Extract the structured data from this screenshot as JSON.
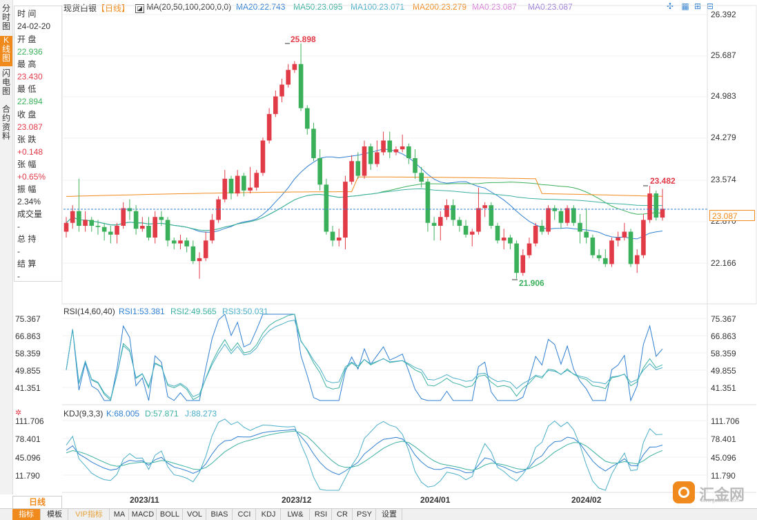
{
  "left_tabs": [
    "分时图",
    "K线图",
    "闪电图",
    "合约资料"
  ],
  "info": {
    "time_label": "时 间",
    "time_value": "24-02-20",
    "open_label": "开 盘",
    "open_value": "22.936",
    "high_label": "最 高",
    "high_value": "23.430",
    "low_label": "最 低",
    "low_value": "22.894",
    "close_label": "收 盘",
    "close_value": "23.087",
    "change_label": "张 跌",
    "change_value": "+0.148",
    "pct_label": "张 幅",
    "pct_value": "+0.65%",
    "amp_label": "振 幅",
    "amp_value": "2.34%",
    "vol_label": "成交量",
    "vol_value": "-",
    "oi_label": "总 持",
    "oi_value": "-",
    "settle_label": "结 算",
    "settle_value": "-"
  },
  "header": {
    "title": "现货白银",
    "period": "【日线】",
    "ma_params": "MA(20,50,100,200,0,0)",
    "ma20": "MA20:22.743",
    "ma50": "MA50:23.095",
    "ma100": "MA100:23.071",
    "ma200": "MA200:23.279",
    "ma0a": "MA0:23.087",
    "ma0b": "MA0:23.087"
  },
  "price_axis": [
    "26.392",
    "25.687",
    "24.983",
    "24.279",
    "23.574",
    "22.870",
    "22.166"
  ],
  "current_price": "23.087",
  "annotations": {
    "high": "25.898",
    "low": "21.906",
    "recent_high": "23.482"
  },
  "rsi": {
    "title": "RSI(14,60,40)",
    "rsi1": "RSI1:53.381",
    "rsi2": "RSI2:49.565",
    "rsi3": "RSI3:50.031",
    "axis": [
      "75.367",
      "66.863",
      "58.359",
      "49.855",
      "41.351"
    ]
  },
  "kdj": {
    "title": "KDJ(9,3,3)",
    "k": "K:68.005",
    "d": "D:57.871",
    "j": "J:88.273",
    "axis": [
      "111.706",
      "78.401",
      "45.096",
      "11.790"
    ]
  },
  "period_tab": "日线",
  "date_axis": [
    "2023/11",
    "2023/12",
    "2024/01",
    "2024/02"
  ],
  "bottom_tabs": [
    "指标",
    "模板",
    "VIP指标",
    "MA",
    "MACD",
    "BOLL",
    "VOL",
    "BIAS",
    "CCI",
    "KDJ",
    "LW&",
    "RSI",
    "CR",
    "PSY",
    "设置"
  ],
  "logo_text": "汇金网",
  "logo_url": "www.gold678.com",
  "colors": {
    "up": "#e23b48",
    "down": "#3bb05a",
    "ma20": "#2f7fd0",
    "ma50": "#3bb0a0",
    "ma100": "#3bb05a",
    "ma200": "#f08a1c",
    "ma0": "#c86cd8",
    "accent": "#f08a1c"
  },
  "chart_data": {
    "type": "candlestick",
    "series_note": "",
    "candles": [
      [
        22.7,
        22.85,
        22.6,
        22.95
      ],
      [
        22.85,
        23.05,
        22.75,
        23.15
      ],
      [
        23.05,
        22.8,
        22.7,
        23.6
      ],
      [
        22.8,
        22.9,
        22.7,
        23.05
      ],
      [
        22.9,
        22.8,
        22.7,
        22.95
      ],
      [
        22.8,
        22.78,
        22.65,
        22.9
      ],
      [
        22.78,
        22.7,
        22.55,
        22.85
      ],
      [
        22.7,
        22.65,
        22.5,
        22.8
      ],
      [
        22.65,
        22.8,
        22.5,
        22.85
      ],
      [
        22.8,
        23.1,
        22.75,
        23.2
      ],
      [
        23.1,
        23.05,
        22.9,
        23.25
      ],
      [
        23.05,
        22.75,
        22.65,
        23.15
      ],
      [
        22.75,
        22.8,
        22.7,
        22.95
      ],
      [
        22.8,
        22.6,
        22.55,
        22.95
      ],
      [
        22.6,
        22.95,
        22.5,
        23.05
      ],
      [
        22.95,
        22.9,
        22.8,
        23.05
      ],
      [
        22.9,
        22.55,
        22.45,
        22.95
      ],
      [
        22.55,
        22.5,
        22.4,
        22.6
      ],
      [
        22.5,
        22.55,
        22.4,
        22.65
      ],
      [
        22.55,
        22.45,
        22.35,
        22.6
      ],
      [
        22.45,
        22.2,
        22.15,
        22.55
      ],
      [
        22.2,
        22.25,
        21.9,
        22.35
      ],
      [
        22.25,
        22.55,
        22.2,
        22.7
      ],
      [
        22.55,
        22.9,
        22.5,
        23.0
      ],
      [
        22.9,
        23.25,
        22.85,
        23.3
      ],
      [
        23.25,
        23.6,
        23.2,
        23.75
      ],
      [
        23.6,
        23.35,
        23.25,
        23.65
      ],
      [
        23.35,
        23.65,
        23.3,
        23.75
      ],
      [
        23.65,
        23.4,
        23.3,
        23.7
      ],
      [
        23.4,
        23.45,
        23.35,
        23.8
      ],
      [
        23.45,
        23.7,
        23.4,
        23.75
      ],
      [
        23.7,
        24.25,
        23.65,
        24.3
      ],
      [
        24.25,
        24.7,
        24.2,
        24.8
      ],
      [
        24.7,
        25.0,
        24.65,
        25.1
      ],
      [
        25.0,
        25.2,
        24.9,
        25.3
      ],
      [
        25.2,
        25.45,
        25.15,
        25.55
      ],
      [
        25.45,
        25.55,
        25.4,
        25.6
      ],
      [
        25.55,
        24.8,
        24.75,
        25.9
      ],
      [
        24.8,
        24.45,
        24.35,
        24.85
      ],
      [
        24.45,
        23.95,
        23.9,
        24.55
      ],
      [
        23.95,
        23.5,
        23.4,
        24.1
      ],
      [
        23.5,
        22.7,
        22.65,
        23.6
      ],
      [
        22.7,
        22.55,
        22.45,
        22.8
      ],
      [
        22.55,
        22.6,
        22.45,
        22.75
      ],
      [
        22.6,
        23.55,
        22.4,
        23.65
      ],
      [
        23.55,
        23.9,
        23.5,
        24.0
      ],
      [
        23.9,
        23.65,
        23.6,
        24.05
      ],
      [
        23.65,
        24.15,
        23.6,
        24.25
      ],
      [
        24.15,
        23.85,
        23.75,
        24.2
      ],
      [
        23.85,
        24.05,
        23.8,
        24.25
      ],
      [
        24.05,
        24.25,
        24.0,
        24.4
      ],
      [
        24.25,
        24.05,
        23.95,
        24.4
      ],
      [
        24.05,
        24.1,
        24.0,
        24.15
      ],
      [
        24.1,
        24.15,
        24.05,
        24.35
      ],
      [
        24.15,
        23.95,
        23.85,
        24.2
      ],
      [
        23.95,
        23.7,
        23.6,
        24.1
      ],
      [
        23.7,
        23.55,
        23.45,
        23.8
      ],
      [
        23.55,
        22.85,
        22.7,
        23.6
      ],
      [
        22.85,
        22.8,
        22.55,
        22.95
      ],
      [
        22.8,
        22.95,
        22.55,
        23.05
      ],
      [
        22.95,
        23.15,
        22.9,
        23.25
      ],
      [
        23.15,
        22.9,
        22.8,
        23.25
      ],
      [
        22.9,
        22.8,
        22.7,
        22.95
      ],
      [
        22.8,
        22.65,
        22.6,
        22.9
      ],
      [
        22.65,
        22.7,
        22.45,
        22.75
      ],
      [
        22.7,
        23.1,
        22.65,
        23.45
      ],
      [
        23.1,
        23.15,
        22.95,
        23.2
      ],
      [
        23.15,
        22.8,
        22.75,
        23.2
      ],
      [
        22.8,
        22.55,
        22.5,
        22.85
      ],
      [
        22.55,
        22.6,
        22.4,
        22.75
      ],
      [
        22.6,
        22.5,
        22.4,
        22.65
      ],
      [
        22.5,
        22.0,
        21.9,
        22.55
      ],
      [
        22.0,
        22.3,
        21.95,
        22.4
      ],
      [
        22.3,
        22.5,
        22.25,
        22.6
      ],
      [
        22.5,
        22.8,
        22.45,
        22.85
      ],
      [
        22.8,
        22.7,
        22.65,
        22.9
      ],
      [
        22.7,
        23.1,
        22.65,
        23.15
      ],
      [
        23.1,
        23.05,
        22.9,
        23.15
      ],
      [
        23.05,
        22.85,
        22.75,
        23.1
      ],
      [
        22.85,
        23.1,
        22.8,
        23.15
      ],
      [
        23.1,
        22.85,
        22.8,
        23.15
      ],
      [
        22.85,
        22.7,
        22.5,
        23.0
      ],
      [
        22.7,
        22.6,
        22.5,
        23.1
      ],
      [
        22.6,
        22.3,
        22.25,
        22.65
      ],
      [
        22.3,
        22.25,
        22.2,
        22.4
      ],
      [
        22.25,
        22.15,
        22.1,
        22.4
      ],
      [
        22.15,
        22.55,
        22.1,
        22.6
      ],
      [
        22.55,
        22.6,
        22.45,
        22.7
      ],
      [
        22.6,
        22.7,
        22.55,
        22.85
      ],
      [
        22.7,
        22.15,
        22.1,
        22.75
      ],
      [
        22.15,
        22.3,
        22.0,
        22.4
      ],
      [
        22.3,
        22.9,
        22.25,
        23.0
      ],
      [
        22.9,
        23.35,
        22.85,
        23.48
      ],
      [
        23.35,
        22.94,
        22.89,
        23.4
      ],
      [
        22.94,
        23.09,
        22.89,
        23.43
      ]
    ],
    "ylim": [
      21.75,
      26.5
    ]
  }
}
